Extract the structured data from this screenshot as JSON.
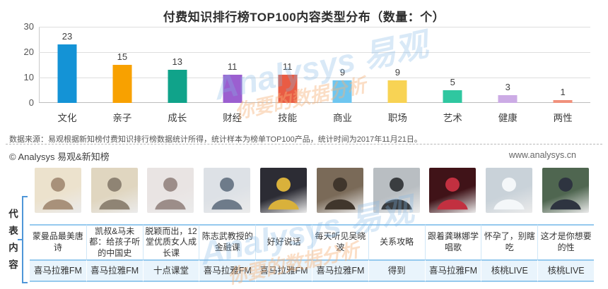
{
  "chart_data": {
    "type": "bar",
    "title": "付费知识排行榜TOP100内容类型分布（数量：个）",
    "categories": [
      "文化",
      "亲子",
      "成长",
      "财经",
      "技能",
      "商业",
      "职场",
      "艺术",
      "健康",
      "两性"
    ],
    "values": [
      23,
      15,
      13,
      11,
      11,
      9,
      9,
      5,
      3,
      1
    ],
    "bar_colors": [
      "#1493d6",
      "#f8a100",
      "#10a38a",
      "#9b5fd0",
      "#e95c44",
      "#6ec6f0",
      "#f8d354",
      "#2fc7a0",
      "#ccabe5",
      "#f0917c"
    ],
    "xlabel": "",
    "ylabel": "",
    "ylim": [
      0,
      30
    ],
    "yticks": [
      0,
      10,
      20,
      30
    ],
    "grid": true,
    "legend": "none",
    "value_labels_shown": true
  },
  "source_note": "数据来源：易观根据新知榜付费知识排行榜数据统计所得，统计样本为榜单TOP100产品，统计时间为2017年11月21日。",
  "footer": {
    "copyright": "© Analysys 易观&新知榜",
    "website": "www.analysys.cn"
  },
  "watermark": {
    "brand": "Analysys 易观",
    "slogan": "你要的数据分析",
    "brand_color": "rgba(128,183,228,0.30)",
    "slogan_color": "rgba(245,176,118,0.42)"
  },
  "table": {
    "row_label": "代表内容",
    "columns": [
      {
        "title": "蒙曼品最美唐诗",
        "platform": "喜马拉雅FM",
        "thumb_bg": "#ece2cd",
        "thumb_tone": "#a8917a"
      },
      {
        "title": "凯叔&马未都：给孩子听的中国史",
        "platform": "喜马拉雅FM",
        "thumb_bg": "#e0d6c0",
        "thumb_tone": "#8f8474"
      },
      {
        "title": "脱颖而出，12堂优质女人成长课",
        "platform": "十点课堂",
        "thumb_bg": "#e9e4e3",
        "thumb_tone": "#9c8d89"
      },
      {
        "title": "陈志武教授的金融课",
        "platform": "喜马拉雅FM",
        "thumb_bg": "#dde1e6",
        "thumb_tone": "#6e7b8a"
      },
      {
        "title": "好好说话",
        "platform": "喜马拉雅FM",
        "thumb_bg": "#2c2c34",
        "thumb_tone": "#d9b13b"
      },
      {
        "title": "每天听见吴晓波",
        "platform": "喜马拉雅FM",
        "thumb_bg": "#7a6a58",
        "thumb_tone": "#40362c"
      },
      {
        "title": "关系攻略",
        "platform": "得到",
        "thumb_bg": "#b9bec2",
        "thumb_tone": "#3a3d40"
      },
      {
        "title": "跟着龚琳娜学唱歌",
        "platform": "喜马拉雅FM",
        "thumb_bg": "#401318",
        "thumb_tone": "#c23040"
      },
      {
        "title": "怀孕了，别瞎吃",
        "platform": "核桃LIVE",
        "thumb_bg": "#c9d2d9",
        "thumb_tone": "#f4f7f9"
      },
      {
        "title": "这才是你想要的性",
        "platform": "核桃LIVE",
        "thumb_bg": "#4f6650",
        "thumb_tone": "#2e3440"
      }
    ]
  }
}
